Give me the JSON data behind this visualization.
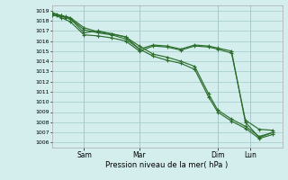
{
  "xlabel": "Pression niveau de la mer( hPa )",
  "bg_color": "#d4eeee",
  "grid_color": "#aad0d0",
  "line_color": "#2d6e2d",
  "ylim": [
    1005.5,
    1019.5
  ],
  "xlim": [
    0,
    100
  ],
  "yticks": [
    1006,
    1007,
    1008,
    1009,
    1010,
    1011,
    1012,
    1013,
    1014,
    1015,
    1016,
    1017,
    1018,
    1019
  ],
  "xtick_positions": [
    14,
    38,
    72,
    86
  ],
  "xtick_labels": [
    "Sam",
    "Mar",
    "Dim",
    "Lun"
  ],
  "vline_positions": [
    14,
    38,
    72,
    86
  ],
  "series": [
    {
      "x": [
        0,
        2,
        4,
        6,
        8,
        14,
        20,
        26,
        32,
        38,
        44,
        50,
        56,
        62,
        68,
        72,
        78,
        84,
        90,
        96
      ],
      "y": [
        1018.5,
        1018.5,
        1018.4,
        1018.3,
        1018.2,
        1017.1,
        1016.8,
        1016.6,
        1016.2,
        1015.2,
        1014.5,
        1014.1,
        1013.8,
        1013.2,
        1010.5,
        1009.0,
        1008.1,
        1007.4,
        1006.4,
        1006.8
      ]
    },
    {
      "x": [
        0,
        2,
        4,
        6,
        8,
        14,
        20,
        26,
        32,
        38,
        44,
        50,
        56,
        62,
        68,
        72,
        78,
        84,
        90,
        96
      ],
      "y": [
        1018.7,
        1018.6,
        1018.5,
        1018.4,
        1018.3,
        1017.3,
        1016.9,
        1016.7,
        1016.4,
        1015.5,
        1014.7,
        1014.4,
        1014.0,
        1013.5,
        1010.8,
        1009.2,
        1008.3,
        1007.6,
        1006.6,
        1007.0
      ]
    },
    {
      "x": [
        0,
        4,
        8,
        14,
        20,
        26,
        32,
        38,
        44,
        50,
        56,
        62,
        68,
        72,
        78,
        84,
        90,
        96
      ],
      "y": [
        1018.6,
        1018.3,
        1017.9,
        1016.6,
        1016.5,
        1016.3,
        1016.0,
        1015.0,
        1015.5,
        1015.4,
        1015.1,
        1015.5,
        1015.4,
        1015.2,
        1014.8,
        1008.2,
        1007.3,
        1007.2
      ]
    },
    {
      "x": [
        0,
        4,
        8,
        14,
        20,
        26,
        32,
        38,
        44,
        50,
        56,
        62,
        68,
        72,
        78,
        84,
        90,
        96
      ],
      "y": [
        1018.8,
        1018.5,
        1018.2,
        1016.8,
        1017.0,
        1016.7,
        1016.4,
        1015.2,
        1015.6,
        1015.5,
        1015.2,
        1015.6,
        1015.5,
        1015.3,
        1015.0,
        1008.0,
        1006.5,
        1007.0
      ]
    }
  ]
}
